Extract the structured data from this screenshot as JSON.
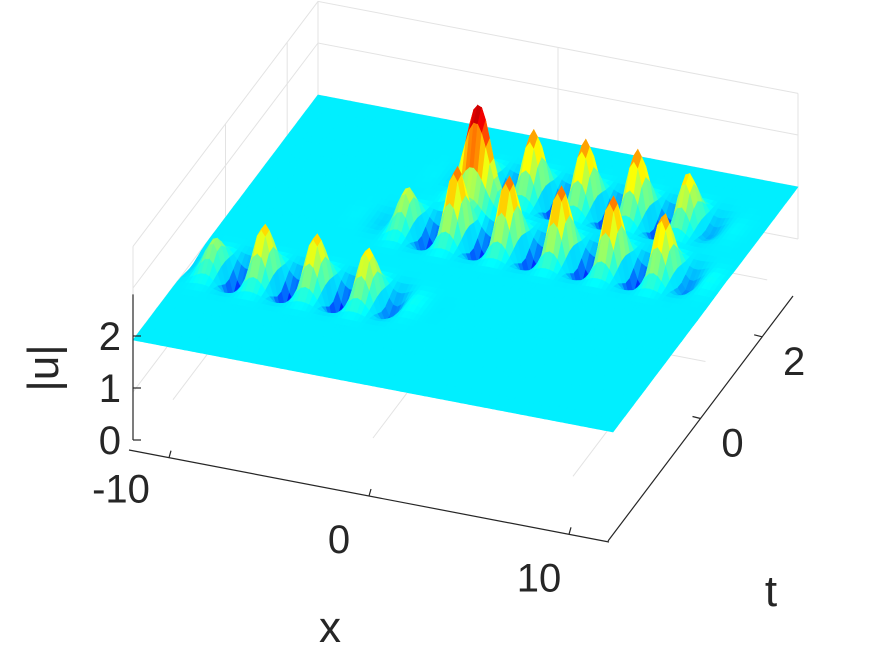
{
  "chart_data": {
    "type": "surface",
    "colormap": "jet",
    "xlabel": "x",
    "ylabel": "t",
    "zlabel": "|u|",
    "xlim": [
      -12,
      12
    ],
    "ylim": [
      -3,
      3
    ],
    "zlim": [
      0,
      2.8
    ],
    "x_ticks": [
      -10,
      0,
      10
    ],
    "x_tick_labels": [
      "-10",
      "0",
      "10"
    ],
    "t_ticks": [
      0,
      2
    ],
    "t_tick_labels": [
      "0",
      "2"
    ],
    "z_ticks": [
      0,
      1,
      2
    ],
    "z_tick_labels": [
      "0",
      "1",
      "2"
    ],
    "background_level": 1.0,
    "surface_features": [
      {
        "kind": "breather_train",
        "t": -1.1,
        "x_range": [
          -11,
          -2
        ],
        "x_spacing": 2.6,
        "peak": 2.0,
        "trough": 0.15
      },
      {
        "kind": "breather_train",
        "t": 0.6,
        "x_range": [
          -4,
          10
        ],
        "x_spacing": 2.6,
        "peak": 2.3,
        "trough": 0.2
      },
      {
        "kind": "breather_train",
        "t": 1.8,
        "x_range": [
          -2,
          9
        ],
        "x_spacing": 2.6,
        "peak": 2.2,
        "trough": 0.15
      },
      {
        "kind": "peak",
        "x": -1.5,
        "t": 1.4,
        "value": 2.8
      }
    ],
    "grid": true
  }
}
